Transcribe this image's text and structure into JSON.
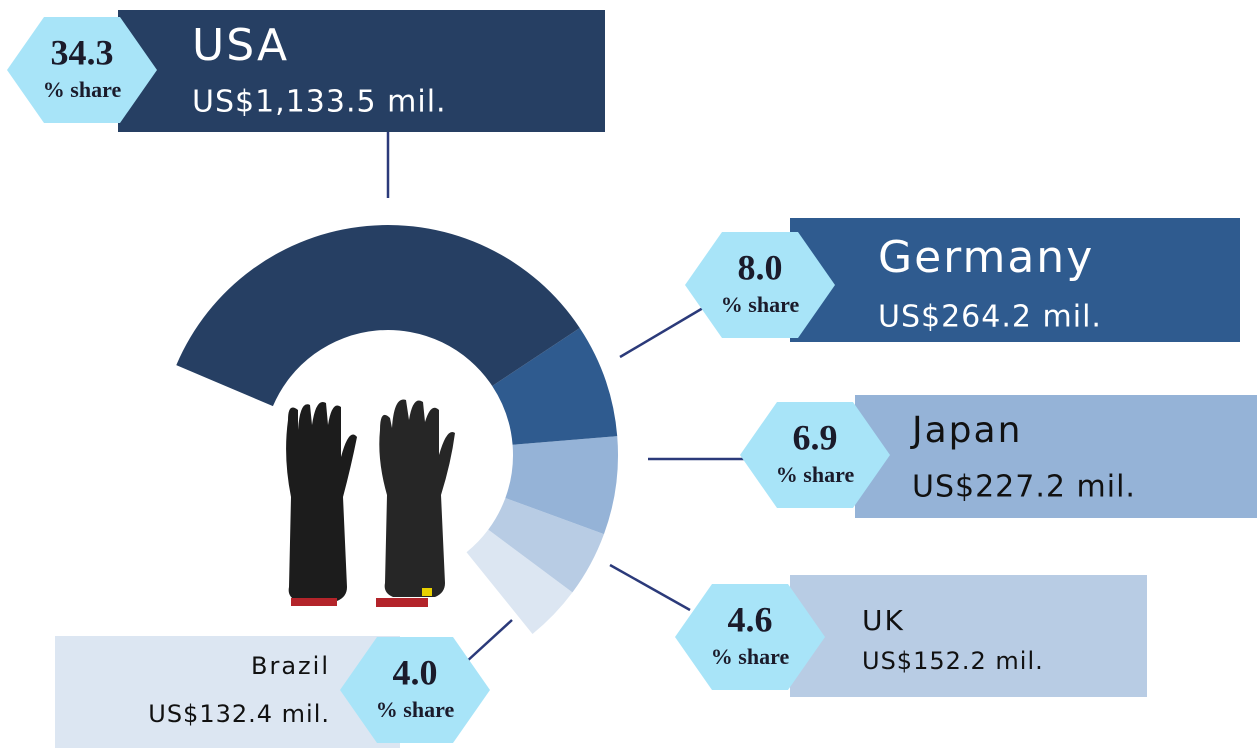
{
  "chart_data": {
    "type": "pie",
    "categories": [
      "USA",
      "Germany",
      "Japan",
      "UK",
      "Brazil"
    ],
    "values": [
      34.3,
      8.0,
      6.9,
      4.6,
      4.0
    ],
    "value_labels": [
      "34.3",
      "8.0",
      "6.9",
      "4.6",
      "4.0"
    ],
    "share_label": "% share",
    "sales": [
      1133.5,
      264.2,
      227.2,
      152.2,
      132.4
    ],
    "sales_labels": [
      "US$1,133.5 mil.",
      "US$264.2 mil.",
      "US$227.2 mil.",
      "US$152.2 mil.",
      "US$132.4 mil."
    ],
    "colors": [
      "#263f63",
      "#2f5b8f",
      "#95b3d7",
      "#b8cce4",
      "#dce6f2"
    ]
  }
}
